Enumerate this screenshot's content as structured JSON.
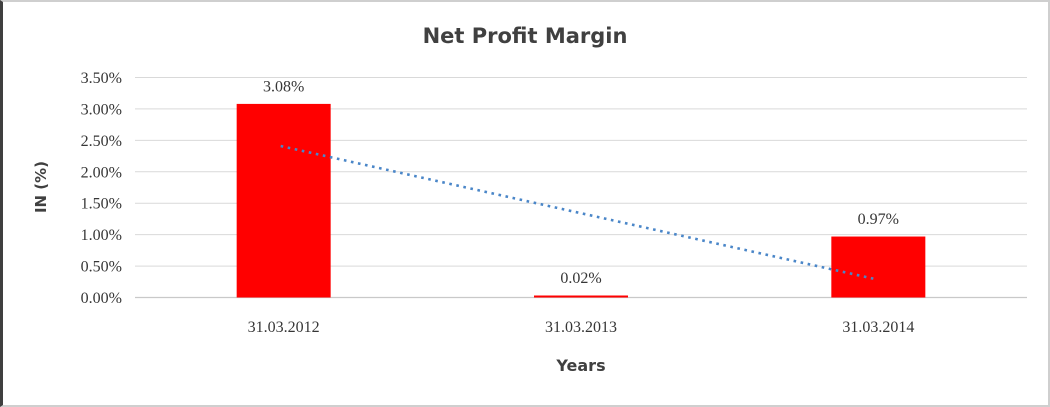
{
  "chart_data": {
    "type": "bar",
    "title": "Net Profit Margin",
    "xlabel": "Years",
    "ylabel": "IN (%)",
    "categories": [
      "31.03.2012",
      "31.03.2013",
      "31.03.2014"
    ],
    "values": [
      3.08,
      0.02,
      0.97
    ],
    "value_labels": [
      "3.08%",
      "0.02%",
      "0.97%"
    ],
    "ylim": [
      0,
      3.5
    ],
    "ytick_step": 0.5,
    "ytick_labels": [
      "0.00%",
      "0.50%",
      "1.00%",
      "1.50%",
      "2.00%",
      "2.50%",
      "3.00%",
      "3.50%"
    ],
    "grid": "horizontal",
    "legend": "none",
    "trendline": {
      "type": "linear",
      "style": "dotted",
      "start_value": 2.41,
      "end_value": 0.3
    }
  },
  "colors": {
    "bar": "#ff0000",
    "trendline": "#4a86c8",
    "gridline": "#d9d9d9",
    "axis_line": "#c9c9c9",
    "title_text": "#404040",
    "axis_title_text": "#404040",
    "tick_text": "#363636",
    "frame_light": "#cfcfcf",
    "frame_dark": "#3f3f3f"
  }
}
